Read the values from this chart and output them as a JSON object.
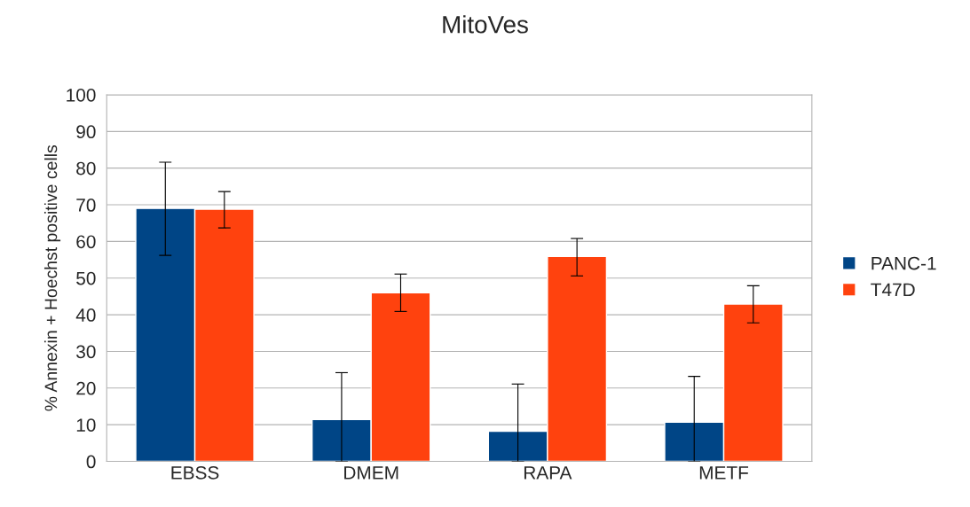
{
  "chart_data": {
    "type": "bar",
    "title": "MitoVes",
    "ylabel": "% Annexin + Hoechst positive cells",
    "categories": [
      "EBSS",
      "DMEM",
      "RAPA",
      "METF"
    ],
    "series": [
      {
        "name": "PANC-1",
        "color": "#004586",
        "values": [
          69.0,
          11.4,
          8.2,
          10.7
        ],
        "errors": [
          [
            56.2,
            81.6
          ],
          [
            0,
            24.2
          ],
          [
            0,
            21.1
          ],
          [
            0,
            23.2
          ]
        ]
      },
      {
        "name": "T47D",
        "color": "#ff420e",
        "values": [
          68.8,
          46.0,
          55.9,
          42.9
        ],
        "errors": [
          [
            63.7,
            73.6
          ],
          [
            40.9,
            51.1
          ],
          [
            50.6,
            60.8
          ],
          [
            37.8,
            47.9
          ]
        ]
      }
    ],
    "ylim": [
      0,
      100
    ],
    "yticks": [
      0,
      10,
      20,
      30,
      40,
      50,
      60,
      70,
      80,
      90,
      100
    ],
    "grid": "y",
    "legend": "right"
  }
}
